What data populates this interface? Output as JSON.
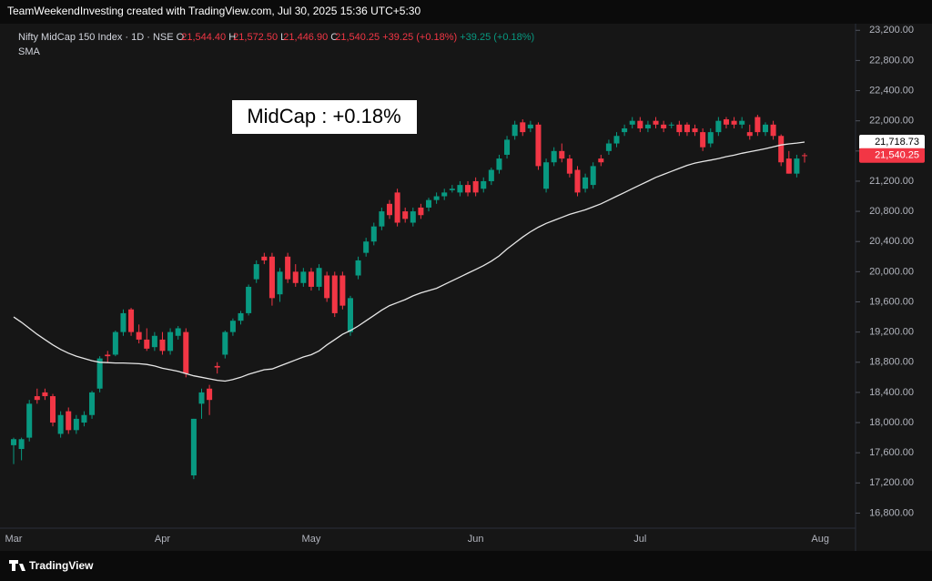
{
  "header_bar": {
    "credit": "TeamWeekendInvesting created with TradingView.com, Jul 30, 2025 15:36 UTC+5:30"
  },
  "footer": {
    "brand": "TradingView"
  },
  "chart_data": {
    "type": "candlestick",
    "title": "Nifty MidCap 150 Index · 1D · NSE",
    "legend_values": {
      "o_label": "O",
      "o": "21,544.40",
      "h_label": "H",
      "h": "21,572.50",
      "l_label": "L",
      "l": "21,446.90",
      "c_label": "C",
      "c": "21,540.25",
      "change": "+39.25 (+0.18%)",
      "change_2": "+39.25 (+0.18%)"
    },
    "annotation": "MidCap : +0.18%",
    "up_color": "#089981",
    "down_color": "#f23645",
    "categories": [
      "Mar",
      null,
      null,
      null,
      null,
      null,
      null,
      null,
      null,
      null,
      null,
      null,
      null,
      null,
      null,
      null,
      null,
      null,
      null,
      "Apr",
      null,
      null,
      null,
      null,
      null,
      null,
      null,
      null,
      null,
      null,
      null,
      null,
      null,
      null,
      null,
      null,
      null,
      null,
      "May",
      null,
      null,
      null,
      null,
      null,
      null,
      null,
      null,
      null,
      null,
      null,
      null,
      null,
      null,
      null,
      null,
      null,
      null,
      null,
      null,
      "Jun",
      null,
      null,
      null,
      null,
      null,
      null,
      null,
      null,
      null,
      null,
      null,
      null,
      null,
      null,
      null,
      null,
      null,
      null,
      null,
      null,
      "Jul",
      null,
      null,
      null,
      null,
      null,
      null,
      null,
      null,
      null,
      null,
      null,
      null,
      null,
      null,
      null,
      null,
      null,
      null,
      null,
      null,
      null
    ],
    "next_period_label": "Aug",
    "open": [
      17700,
      17650,
      17800,
      18350,
      18400,
      18350,
      17850,
      18150,
      17900,
      18000,
      18100,
      18450,
      18900,
      18900,
      19200,
      19500,
      19200,
      19100,
      19000,
      19100,
      18950,
      19150,
      19200,
      17300,
      18250,
      18450,
      18750,
      18900,
      19200,
      19350,
      19450,
      19900,
      20200,
      20200,
      19700,
      20200,
      20000,
      19850,
      20000,
      19800,
      19950,
      19950,
      19950,
      19200,
      19950,
      20250,
      20400,
      20600,
      20900,
      21050,
      20800,
      20650,
      20850,
      20850,
      20950,
      21000,
      21080,
      21050,
      21150,
      21200,
      21100,
      21200,
      21350,
      21550,
      21800,
      21980,
      21900,
      21950,
      21100,
      21450,
      21600,
      21500,
      21350,
      21100,
      21150,
      21500,
      21600,
      21700,
      21850,
      21950,
      22000,
      21900,
      22000,
      21950,
      21950,
      21950,
      21950,
      21900,
      21850,
      21700,
      21850,
      22020,
      22000,
      21950,
      21850,
      22050,
      21850,
      21950,
      21800,
      21500,
      21300,
      21544.4
    ],
    "high": [
      17800,
      17800,
      18300,
      18450,
      18450,
      18380,
      18150,
      18200,
      18100,
      18150,
      18420,
      18880,
      18950,
      19220,
      19500,
      19520,
      19300,
      19250,
      19200,
      19200,
      19250,
      19280,
      19250,
      18050,
      18450,
      18500,
      18800,
      19220,
      19380,
      19480,
      19830,
      20150,
      20250,
      20250,
      20050,
      20250,
      20100,
      20050,
      20050,
      20100,
      20000,
      20000,
      20000,
      19680,
      20200,
      20450,
      20650,
      20850,
      20950,
      21100,
      20850,
      20850,
      20900,
      20980,
      21050,
      21100,
      21150,
      21200,
      21200,
      21250,
      21250,
      21380,
      21550,
      21800,
      22000,
      22020,
      22000,
      21980,
      21500,
      21650,
      21700,
      21550,
      21400,
      21300,
      21450,
      21550,
      21750,
      21850,
      21950,
      22050,
      22050,
      22000,
      22050,
      22000,
      21980,
      22000,
      21980,
      21950,
      21900,
      21900,
      22050,
      22050,
      22050,
      22050,
      21950,
      22080,
      21980,
      22000,
      21820,
      21600,
      21550,
      21572.5
    ],
    "low": [
      17450,
      17500,
      17750,
      18250,
      18300,
      17950,
      17800,
      17850,
      17850,
      17950,
      18050,
      18400,
      18800,
      18880,
      19150,
      19150,
      19050,
      18950,
      18950,
      18900,
      18900,
      19100,
      18600,
      17250,
      18050,
      18100,
      18650,
      18850,
      19150,
      19300,
      19420,
      19850,
      20100,
      19550,
      19600,
      19850,
      19800,
      19800,
      19750,
      19750,
      19600,
      19400,
      19500,
      19150,
      19900,
      20200,
      20350,
      20550,
      20700,
      20600,
      20650,
      20600,
      20700,
      20800,
      20900,
      20950,
      21050,
      21000,
      21000,
      21000,
      21050,
      21150,
      21300,
      21500,
      21750,
      21800,
      21850,
      21350,
      21050,
      21400,
      21450,
      21250,
      21000,
      21050,
      21100,
      21400,
      21550,
      21650,
      21800,
      21900,
      21850,
      21850,
      21900,
      21850,
      21900,
      21800,
      21800,
      21800,
      21600,
      21650,
      21800,
      21900,
      21900,
      21900,
      21750,
      21800,
      21800,
      21750,
      21400,
      21300,
      21250,
      21446.9
    ],
    "close": [
      17780,
      17780,
      18250,
      18300,
      18350,
      18000,
      18100,
      17900,
      18050,
      18100,
      18400,
      18850,
      18880,
      19200,
      19450,
      19200,
      19100,
      18980,
      19150,
      18950,
      19200,
      19250,
      18650,
      18050,
      18400,
      18300,
      18730,
      19200,
      19350,
      19450,
      19800,
      20100,
      20150,
      19650,
      20000,
      19900,
      19850,
      20000,
      19800,
      20050,
      19650,
      19450,
      19550,
      19650,
      20150,
      20400,
      20600,
      20800,
      20750,
      20650,
      20700,
      20800,
      20750,
      20950,
      21000,
      21050,
      21100,
      21150,
      21050,
      21050,
      21200,
      21350,
      21500,
      21750,
      21950,
      21850,
      21950,
      21400,
      21450,
      21600,
      21500,
      21300,
      21050,
      21250,
      21400,
      21450,
      21700,
      21800,
      21900,
      22000,
      21900,
      21950,
      21950,
      21900,
      21950,
      21850,
      21850,
      21850,
      21650,
      21850,
      22000,
      21950,
      21950,
      22000,
      21800,
      21850,
      21950,
      21800,
      21450,
      21300,
      21500,
      21540.25
    ],
    "close_label": "21,540.25",
    "sma": {
      "name": "SMA",
      "color": "#e6e6e6",
      "value_label": "21,718.73",
      "values": [
        19400,
        19330,
        19250,
        19170,
        19100,
        19030,
        18970,
        18920,
        18880,
        18850,
        18820,
        18800,
        18795,
        18790,
        18790,
        18785,
        18780,
        18770,
        18750,
        18720,
        18700,
        18680,
        18650,
        18620,
        18600,
        18580,
        18560,
        18550,
        18570,
        18600,
        18640,
        18670,
        18700,
        18710,
        18750,
        18790,
        18830,
        18870,
        18900,
        18950,
        19030,
        19100,
        19170,
        19220,
        19280,
        19350,
        19420,
        19490,
        19550,
        19590,
        19630,
        19680,
        19720,
        19750,
        19780,
        19830,
        19880,
        19930,
        19980,
        20030,
        20080,
        20140,
        20210,
        20300,
        20380,
        20460,
        20530,
        20590,
        20640,
        20680,
        20720,
        20760,
        20790,
        20820,
        20860,
        20900,
        20950,
        21000,
        21050,
        21100,
        21150,
        21200,
        21250,
        21290,
        21330,
        21370,
        21410,
        21440,
        21460,
        21480,
        21500,
        21525,
        21545,
        21570,
        21590,
        21610,
        21630,
        21655,
        21680,
        21695,
        21705,
        21718.73
      ]
    },
    "ylim": [
      16600,
      23300
    ],
    "yticks": [
      {
        "value": 16800,
        "label": "16,800.00"
      },
      {
        "value": 17200,
        "label": "17,200.00"
      },
      {
        "value": 17600,
        "label": "17,600.00"
      },
      {
        "value": 18000,
        "label": "18,000.00"
      },
      {
        "value": 18400,
        "label": "18,400.00"
      },
      {
        "value": 18800,
        "label": "18,800.00"
      },
      {
        "value": 19200,
        "label": "19,200.00"
      },
      {
        "value": 19600,
        "label": "19,600.00"
      },
      {
        "value": 20000,
        "label": "20,000.00"
      },
      {
        "value": 20400,
        "label": "20,400.00"
      },
      {
        "value": 20800,
        "label": "20,800.00"
      },
      {
        "value": 21200,
        "label": "21,200.00"
      },
      {
        "value": 21600,
        "label": "21,600.00"
      },
      {
        "value": 22000,
        "label": "22,000.00"
      },
      {
        "value": 22400,
        "label": "22,400.00"
      },
      {
        "value": 22800,
        "label": "22,800.00"
      },
      {
        "value": 23200,
        "label": "23,200.00"
      }
    ],
    "grid": false
  }
}
